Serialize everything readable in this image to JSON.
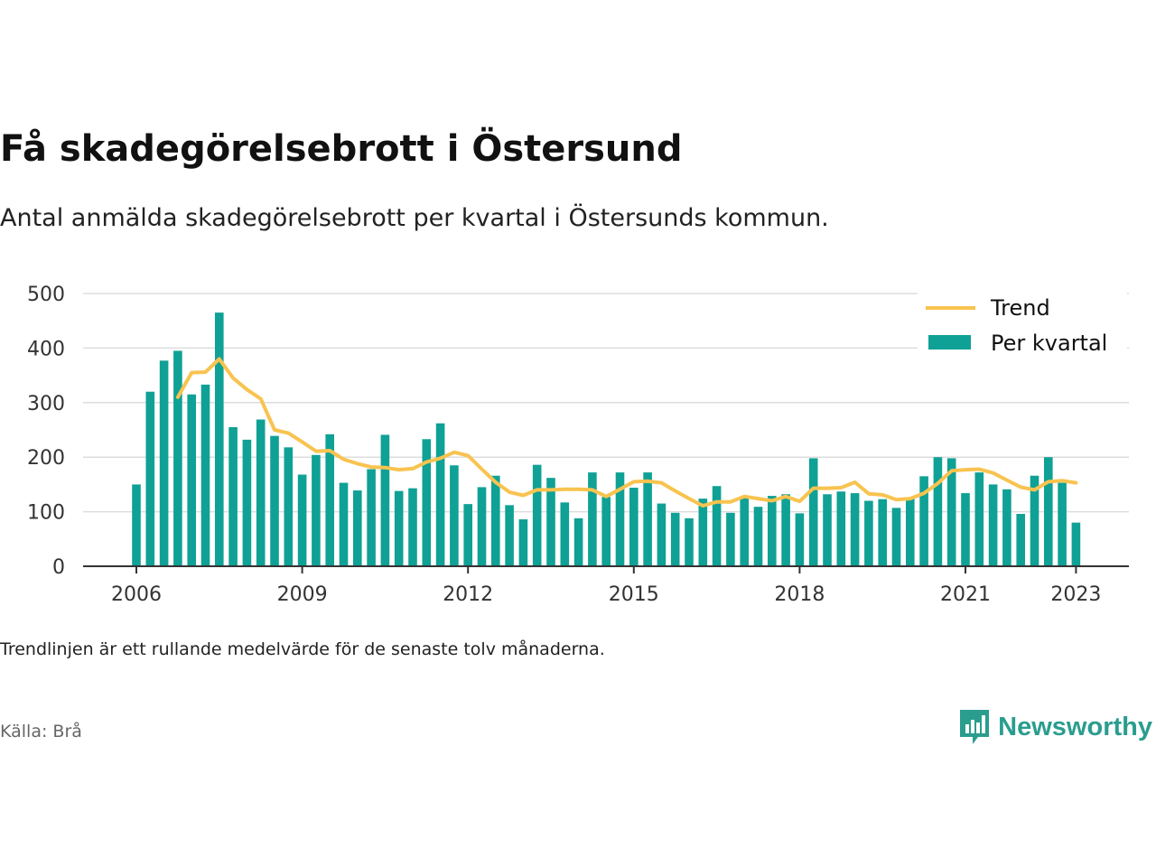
{
  "title": "Få skadegörelsebrott i Östersund",
  "subtitle": "Antal anmälda skadegörelsebrott per kvartal i Östersunds kommun.",
  "note": "Trendlinjen är ett rullande medelvärde för de senaste tolv månaderna.",
  "source": "Källa: Brå",
  "brand": {
    "name": "Newsworthy",
    "icon": "newsworthy-logo-icon"
  },
  "colors": {
    "bars": "#0fa195",
    "trend": "#f8c34f",
    "grid": "#dddddd",
    "axis": "#333333"
  },
  "chart_data": {
    "type": "bar",
    "title": "Få skadegörelsebrott i Östersund",
    "xlabel": "",
    "ylabel": "",
    "ylim": [
      0,
      500
    ],
    "yticks": [
      0,
      100,
      200,
      300,
      400,
      500
    ],
    "xticks": [
      "2006",
      "2009",
      "2012",
      "2015",
      "2018",
      "2021",
      "2023"
    ],
    "grid": true,
    "legend_position": "top-right",
    "quarters": [
      "2006Q1",
      "2006Q2",
      "2006Q3",
      "2006Q4",
      "2007Q1",
      "2007Q2",
      "2007Q3",
      "2007Q4",
      "2008Q1",
      "2008Q2",
      "2008Q3",
      "2008Q4",
      "2009Q1",
      "2009Q2",
      "2009Q3",
      "2009Q4",
      "2010Q1",
      "2010Q2",
      "2010Q3",
      "2010Q4",
      "2011Q1",
      "2011Q2",
      "2011Q3",
      "2011Q4",
      "2012Q1",
      "2012Q2",
      "2012Q3",
      "2012Q4",
      "2013Q1",
      "2013Q2",
      "2013Q3",
      "2013Q4",
      "2014Q1",
      "2014Q2",
      "2014Q3",
      "2014Q4",
      "2015Q1",
      "2015Q2",
      "2015Q3",
      "2015Q4",
      "2016Q1",
      "2016Q2",
      "2016Q3",
      "2016Q4",
      "2017Q1",
      "2017Q2",
      "2017Q3",
      "2017Q4",
      "2018Q1",
      "2018Q2",
      "2018Q3",
      "2018Q4",
      "2019Q1",
      "2019Q2",
      "2019Q3",
      "2019Q4",
      "2020Q1",
      "2020Q2",
      "2020Q3",
      "2020Q4",
      "2021Q1",
      "2021Q2",
      "2021Q3",
      "2021Q4",
      "2022Q1",
      "2022Q2",
      "2022Q3",
      "2022Q4",
      "2023Q1"
    ],
    "series": [
      {
        "name": "Per kvartal",
        "type": "bar",
        "values": [
          150,
          320,
          377,
          395,
          315,
          333,
          465,
          255,
          232,
          269,
          239,
          218,
          168,
          204,
          242,
          153,
          139,
          178,
          241,
          138,
          143,
          233,
          262,
          185,
          114,
          145,
          166,
          112,
          86,
          186,
          162,
          117,
          88,
          172,
          127,
          172,
          144,
          172,
          115,
          98,
          88,
          124,
          147,
          98,
          128,
          109,
          129,
          132,
          97,
          198,
          132,
          137,
          134,
          120,
          123,
          107,
          125,
          165,
          200,
          198,
          134,
          172,
          150,
          141,
          96,
          166,
          200,
          153,
          80
        ]
      },
      {
        "name": "Trend",
        "type": "line",
        "values": [
          null,
          null,
          null,
          310,
          355,
          356,
          380,
          345,
          324,
          307,
          250,
          244,
          228,
          211,
          212,
          196,
          188,
          182,
          181,
          177,
          179,
          191,
          198,
          209,
          203,
          178,
          154,
          136,
          130,
          140,
          140,
          141,
          141,
          140,
          128,
          141,
          155,
          156,
          153,
          138,
          124,
          111,
          118,
          118,
          128,
          124,
          120,
          128,
          119,
          143,
          143,
          144,
          154,
          133,
          131,
          122,
          124,
          134,
          152,
          175,
          177,
          178,
          171,
          158,
          145,
          140,
          155,
          157,
          153
        ]
      }
    ]
  }
}
